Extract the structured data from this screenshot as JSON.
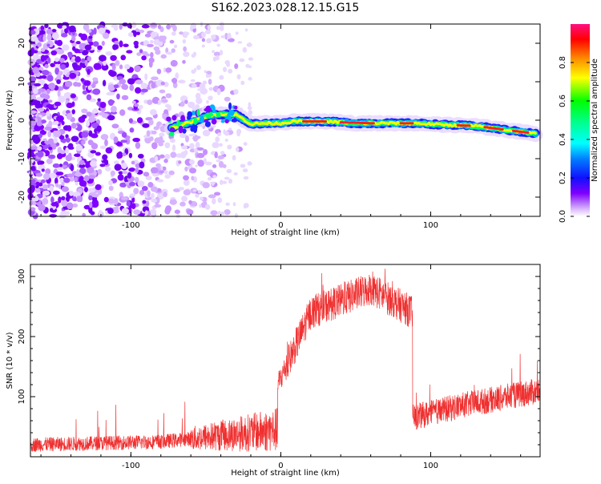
{
  "title": "S162.2023.028.12.15.G15",
  "chart_data": [
    {
      "type": "heatmap",
      "xlabel": "Height of straight line (km)",
      "ylabel": "Frequency (Hz)",
      "xlim": [
        -167,
        173
      ],
      "ylim": [
        -25,
        25
      ],
      "x_ticks": [
        -100,
        0,
        100
      ],
      "y_ticks": [
        -20,
        -10,
        0,
        10,
        20
      ],
      "colorbar": {
        "label": "Normalized spectral amplitude",
        "range": [
          0,
          1
        ],
        "ticks": [
          "0.0",
          "0.2",
          "0.4",
          "0.6",
          "0.8"
        ]
      },
      "ridge": {
        "description_points": [
          [
            -73,
            -2
          ],
          [
            -60,
            -0.5
          ],
          [
            -45,
            1.5
          ],
          [
            -30,
            1.5
          ],
          [
            -20,
            -1
          ],
          [
            -10,
            -0.8
          ],
          [
            0,
            -0.8
          ],
          [
            10,
            -0.3
          ],
          [
            30,
            -0.3
          ],
          [
            50,
            -0.8
          ],
          [
            70,
            -0.8
          ],
          [
            90,
            -0.8
          ],
          [
            110,
            -1.2
          ],
          [
            130,
            -1.5
          ],
          [
            150,
            -2.5
          ],
          [
            170,
            -3.5
          ]
        ]
      },
      "grid": false
    },
    {
      "type": "line",
      "xlabel": "Height of straight line (km)",
      "ylabel": "SNR (10 * v/v)",
      "xlim": [
        -167,
        173
      ],
      "ylim": [
        0,
        320
      ],
      "x_ticks": [
        -100,
        0,
        100
      ],
      "y_ticks": [
        100,
        200,
        300
      ],
      "color": "#ef3030",
      "segments": [
        {
          "x_start": -167,
          "x_end": -80,
          "snr_start": 20,
          "snr_end": 25
        },
        {
          "x_start": -80,
          "x_end": -2,
          "snr_start": 25,
          "snr_end": 45
        },
        {
          "x_start": -2,
          "x_end": 20,
          "snr_start": 120,
          "snr_end": 240
        },
        {
          "x_start": 20,
          "x_end": 60,
          "snr_start": 240,
          "snr_end": 280
        },
        {
          "x_start": 60,
          "x_end": 88,
          "snr_start": 280,
          "snr_end": 240
        },
        {
          "x_start": 88,
          "x_end": 120,
          "snr_start": 65,
          "snr_end": 85
        },
        {
          "x_start": 120,
          "x_end": 173,
          "snr_start": 85,
          "snr_end": 110
        }
      ],
      "grid": false
    }
  ]
}
